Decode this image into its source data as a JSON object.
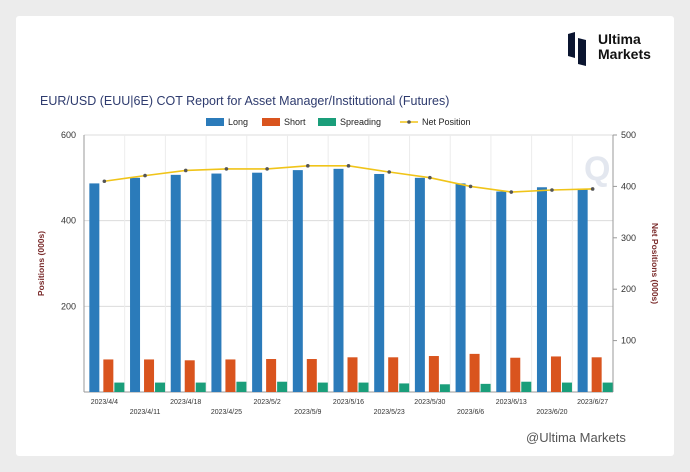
{
  "brand": {
    "line1": "Ultima",
    "line2": "Markets",
    "watermark": "@Ultima Markets",
    "dark_color": "#0b1530"
  },
  "chart_data": {
    "type": "bar",
    "title": "EUR/USD (EUU|6E) COT Report for Asset Manager/Institutional (Futures)",
    "ylabel": "Positions (000s)",
    "y2label": "Net Positions (000s)",
    "ylim": [
      0,
      600
    ],
    "y2lim": [
      0,
      500
    ],
    "yticks": [
      200,
      400,
      600
    ],
    "y2ticks": [
      100,
      200,
      300,
      400,
      500
    ],
    "grid": true,
    "legend_position": "top",
    "categories": [
      "2023/4/4",
      "2023/4/11",
      "2023/4/18",
      "2023/4/25",
      "2023/5/2",
      "2023/5/9",
      "2023/5/16",
      "2023/5/23",
      "2023/5/30",
      "2023/6/6",
      "2023/6/13",
      "2023/6/20",
      "2023/6/27"
    ],
    "series": [
      {
        "name": "Long",
        "type": "bar",
        "axis": "left",
        "color": "#2b7bba",
        "values": [
          487,
          500,
          507,
          510,
          512,
          518,
          521,
          509,
          500,
          487,
          468,
          478,
          475
        ]
      },
      {
        "name": "Short",
        "type": "bar",
        "axis": "left",
        "color": "#d9541e",
        "values": [
          76,
          76,
          74,
          76,
          77,
          77,
          81,
          81,
          84,
          89,
          80,
          83,
          81
        ]
      },
      {
        "name": "Spreading",
        "type": "bar",
        "axis": "left",
        "color": "#1a9e7a",
        "values": [
          22,
          22,
          22,
          24,
          24,
          22,
          22,
          20,
          18,
          19,
          24,
          22,
          22
        ]
      },
      {
        "name": "Net Position",
        "type": "line",
        "axis": "right",
        "color": "#f0c419",
        "values": [
          410,
          421,
          431,
          434,
          434,
          440,
          440,
          428,
          417,
          400,
          389,
          393,
          395
        ]
      }
    ]
  }
}
